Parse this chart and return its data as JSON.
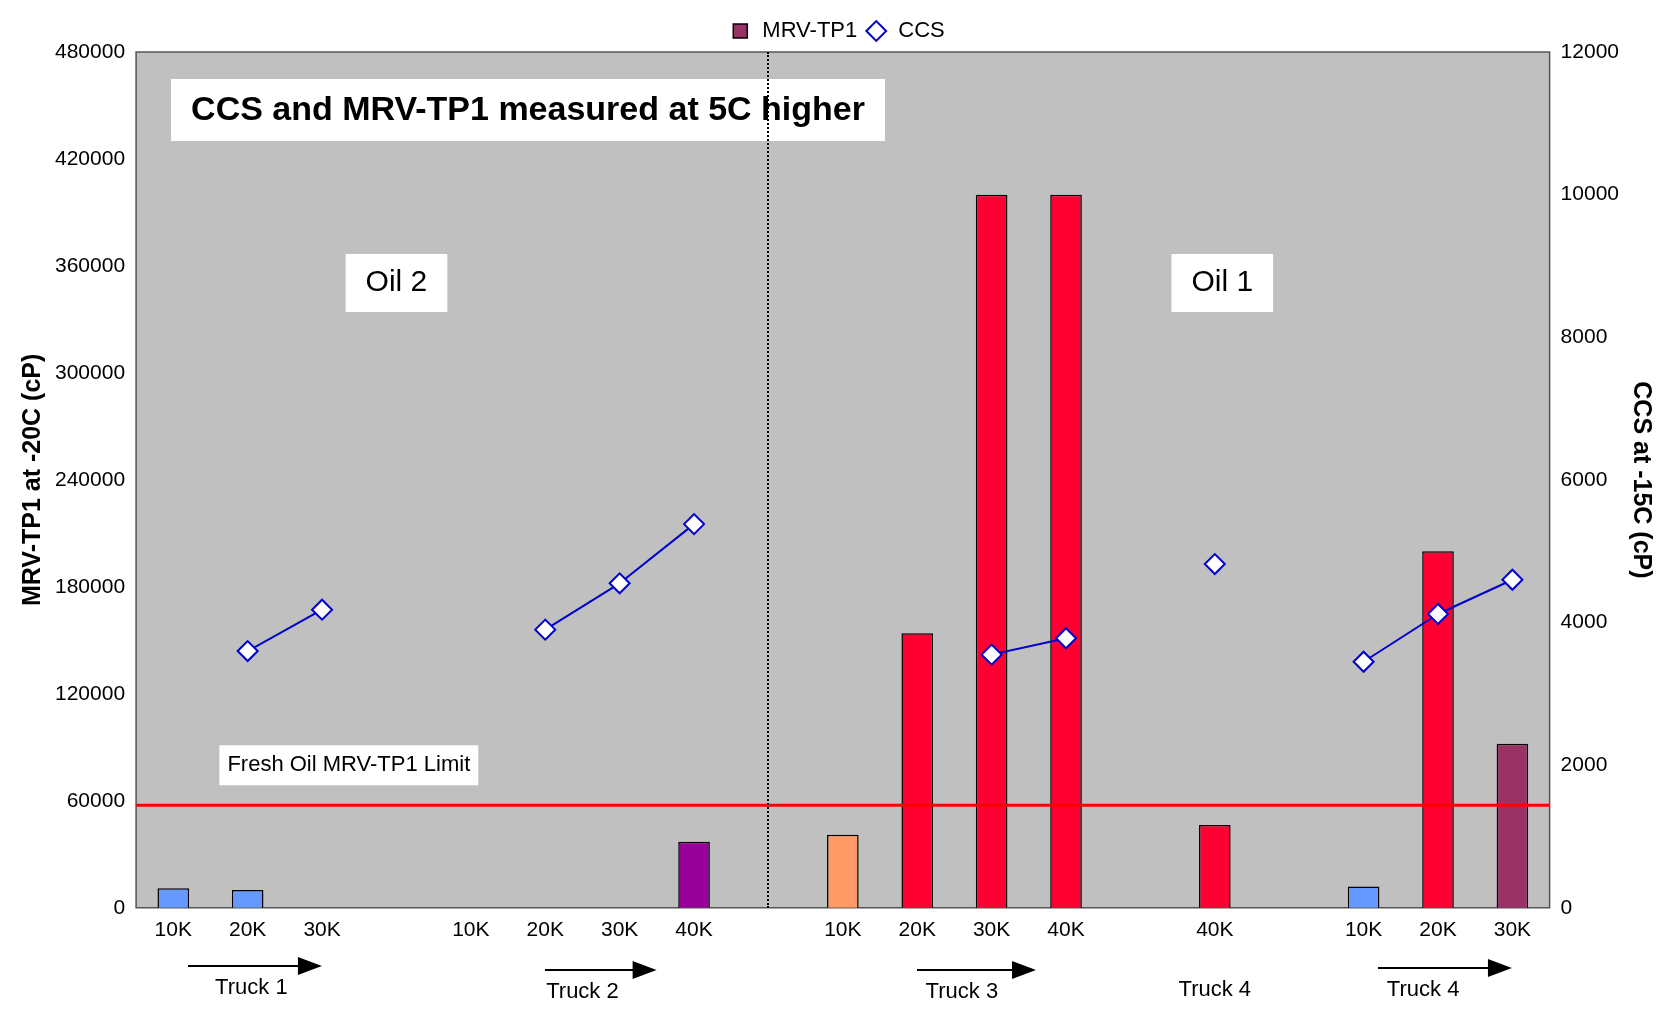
{
  "chart_data": {
    "type": "bar",
    "title": "CCS and MRV-TP1 measured at 5C higher",
    "ylabel": "MRV-TP1 at -20C (cP)",
    "y2label": "CCS at -15C (cP)",
    "categories": [
      "10K",
      "20K",
      "30K",
      null,
      "10K",
      "20K",
      "30K",
      "40K",
      null,
      "10K",
      "20K",
      "30K",
      "40K",
      null,
      "40K",
      null,
      "10K",
      "20K",
      "30K"
    ],
    "series": [
      {
        "name": "MRV-TP1",
        "color": "#993366",
        "colors": [
          "#6699ff",
          "#6699ff",
          "#993366",
          "#993366",
          "#993366",
          "#993366",
          "#993366",
          "#990099",
          "#993366",
          "#ff9966",
          "#ff0033",
          "#ff0033",
          "#ff0033",
          "#993366",
          "#ff0033",
          "#993366",
          "#6699ff",
          "#ff0033",
          "#993366"
        ],
        "values": [
          11000,
          10000,
          null,
          null,
          null,
          null,
          null,
          37000,
          null,
          41000,
          154000,
          400000,
          400000,
          null,
          46500,
          null,
          12000,
          200000,
          92000
        ]
      },
      {
        "name": "CCS",
        "type": "line",
        "axis": "y2",
        "color": "#0000cc",
        "values": [
          null,
          3600,
          4180,
          null,
          null,
          3900,
          4550,
          5380,
          null,
          null,
          null,
          3550,
          3780,
          null,
          4820,
          null,
          3450,
          4120,
          4600
        ]
      }
    ],
    "marker": "diamond",
    "line_style": "solid",
    "legend": "top",
    "ylim": [
      0,
      480000
    ],
    "yticks": [
      0,
      60000,
      120000,
      180000,
      240000,
      300000,
      360000,
      420000,
      480000
    ],
    "y2lim": [
      0,
      12000
    ],
    "y2ticks": [
      0,
      2000,
      4000,
      6000,
      8000,
      10000,
      12000
    ],
    "ref_lines": [
      {
        "axis": "y",
        "value": 57500,
        "label": "Fresh Oil MRV-TP1 Limit",
        "color": "#ff0000"
      }
    ],
    "annotations": [
      "Oil 2",
      "Oil 1",
      "Truck 1",
      "Truck 2",
      "Truck 3",
      "Truck 4",
      "Truck 4"
    ]
  }
}
